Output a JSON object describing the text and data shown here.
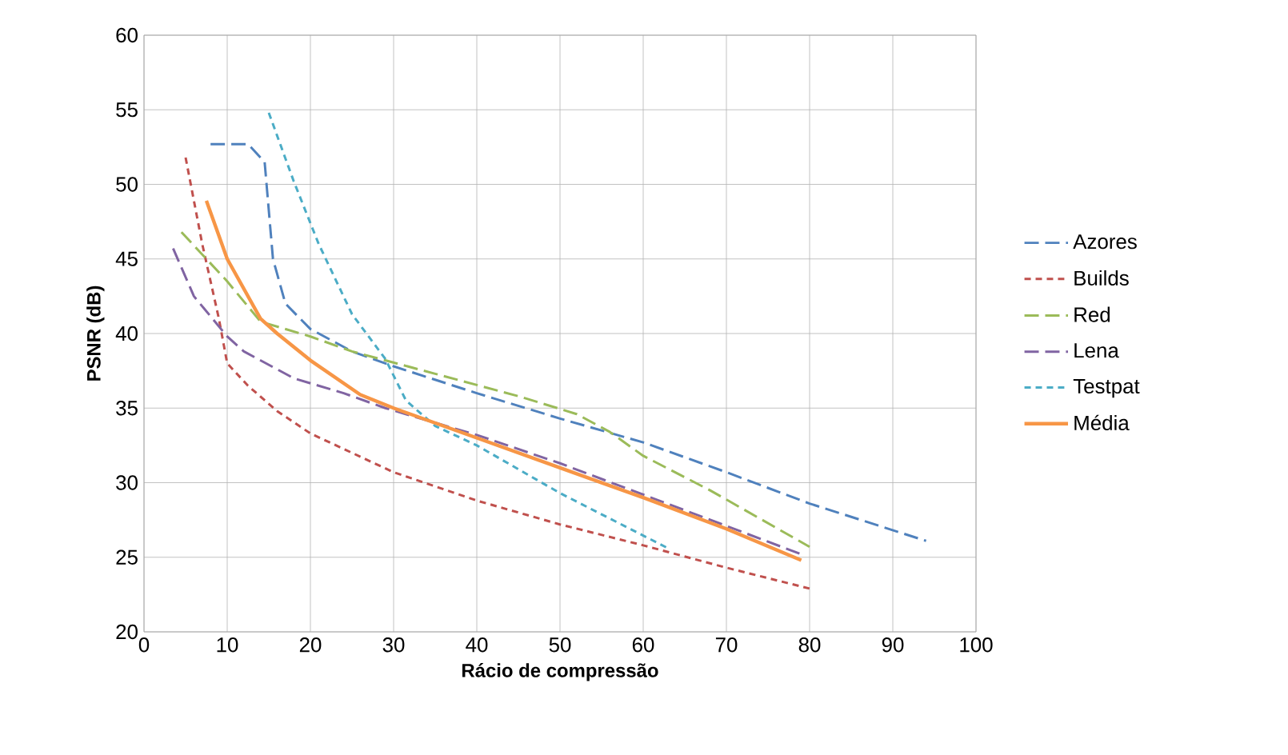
{
  "chart_data": {
    "type": "line",
    "xlabel": "Rácio de compressão",
    "ylabel": "PSNR (dB)",
    "xlim": [
      0,
      100
    ],
    "xticks": [
      0,
      10,
      20,
      30,
      40,
      50,
      60,
      70,
      80,
      90,
      100
    ],
    "ylim": [
      20,
      60
    ],
    "yticks": [
      20,
      25,
      30,
      35,
      40,
      45,
      50,
      55,
      60
    ],
    "grid": true,
    "legend": "right",
    "series": [
      {
        "name": "Azores",
        "color": "#4f81bd",
        "line_style": "dashed",
        "x": [
          8,
          12.5,
          14.5,
          15.5,
          17,
          20,
          25,
          30,
          40,
          50,
          60,
          70,
          80,
          94
        ],
        "values": [
          52.7,
          52.7,
          51.5,
          45,
          42,
          40.3,
          38.8,
          37.8,
          36,
          34.3,
          32.7,
          30.7,
          28.6,
          26.1
        ]
      },
      {
        "name": "Builds",
        "color": "#c0504d",
        "line_style": "dotted",
        "x": [
          5,
          7,
          9,
          10,
          12.5,
          16,
          20,
          30,
          40,
          50,
          60,
          70,
          80
        ],
        "values": [
          51.8,
          46,
          41,
          38,
          36.5,
          34.8,
          33.3,
          30.7,
          28.8,
          27.2,
          25.8,
          24.3,
          22.9
        ]
      },
      {
        "name": "Red",
        "color": "#9bbb59",
        "line_style": "dashed",
        "x": [
          4.5,
          10,
          14,
          20,
          25,
          35,
          45,
          52,
          56,
          60,
          68,
          80
        ],
        "values": [
          46.8,
          43.5,
          40.8,
          39.8,
          38.8,
          37.3,
          35.8,
          34.6,
          33.4,
          31.8,
          29.5,
          25.7
        ]
      },
      {
        "name": "Lena",
        "color": "#8064a2",
        "line_style": "dashed",
        "x": [
          3.5,
          6,
          10,
          12,
          18,
          24,
          29,
          40,
          50,
          60,
          70,
          79
        ],
        "values": [
          45.7,
          42.5,
          39.8,
          38.8,
          37,
          36,
          35,
          33.2,
          31.3,
          29.2,
          27.1,
          25.2
        ]
      },
      {
        "name": "Testpat",
        "color": "#4bacc6",
        "line_style": "dotted",
        "x": [
          15,
          18,
          21,
          25,
          29,
          31.5,
          35,
          40,
          50,
          63
        ],
        "values": [
          54.8,
          50.2,
          46,
          41.3,
          38.3,
          35.5,
          33.8,
          32.5,
          29.3,
          25.6
        ]
      },
      {
        "name": "Média",
        "color": "#f79646",
        "line_style": "solid",
        "x": [
          7.5,
          10,
          14,
          16,
          20,
          26,
          30,
          40,
          50,
          60,
          70,
          79
        ],
        "values": [
          48.9,
          45,
          41,
          40,
          38.2,
          35.9,
          35,
          33,
          31,
          29,
          26.9,
          24.8
        ]
      }
    ]
  }
}
